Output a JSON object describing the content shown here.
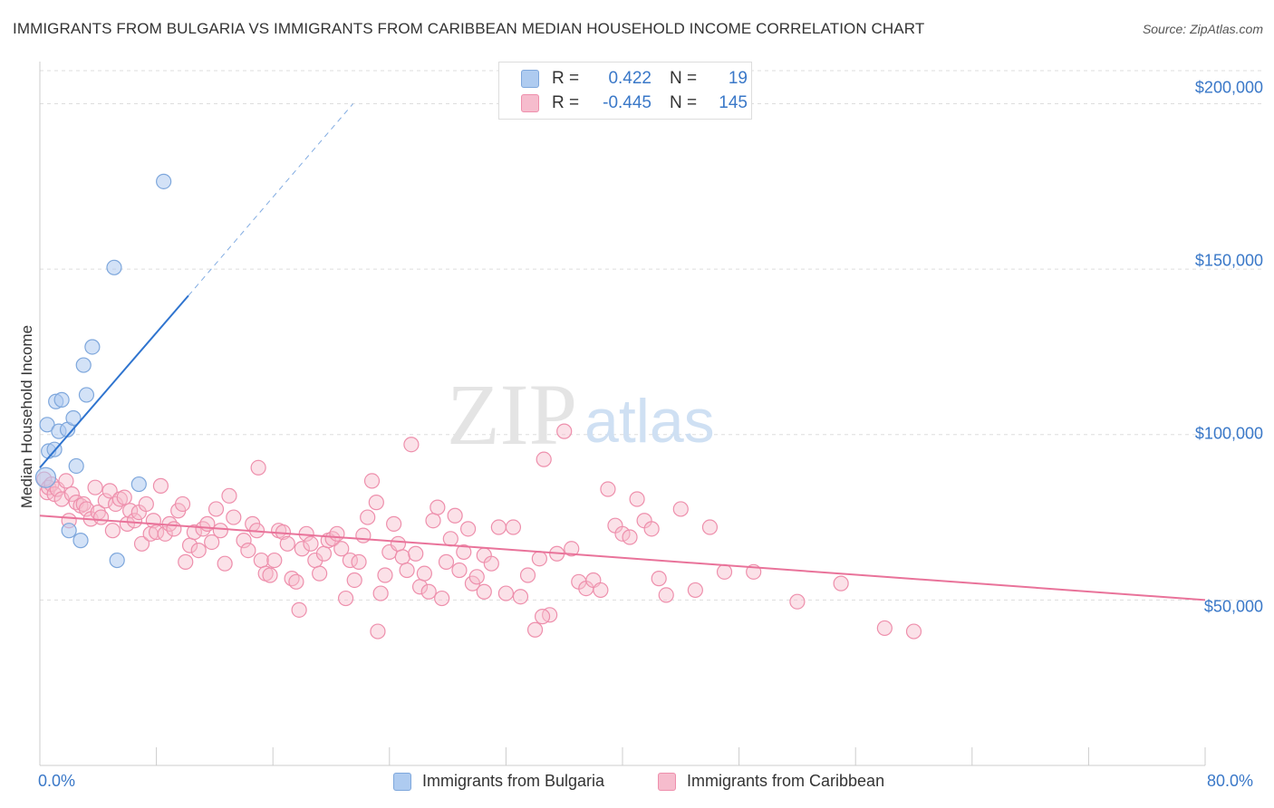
{
  "title": "IMMIGRANTS FROM BULGARIA VS IMMIGRANTS FROM CARIBBEAN MEDIAN HOUSEHOLD INCOME CORRELATION CHART",
  "source": "Source: ZipAtlas.com",
  "watermark": {
    "zip": "ZIP",
    "atlas": "atlas"
  },
  "legend": {
    "bulgaria": {
      "r_label": "R =",
      "r_value": "0.422",
      "n_label": "N =",
      "n_value": "19"
    },
    "caribbean": {
      "r_label": "R =",
      "r_value": "-0.445",
      "n_label": "N =",
      "n_value": "145"
    }
  },
  "colors": {
    "bulgaria_fill": "#aecbf0",
    "bulgaria_stroke": "#7ea7dc",
    "bulgaria_line": "#2f74cf",
    "caribbean_fill": "#f6bccd",
    "caribbean_stroke": "#ee8fac",
    "caribbean_line": "#e9739a",
    "accent_text": "#3a78c8",
    "grid": "#dddddd"
  },
  "chart_data": {
    "type": "scatter",
    "title": "IMMIGRANTS FROM BULGARIA VS IMMIGRANTS FROM CARIBBEAN MEDIAN HOUSEHOLD INCOME CORRELATION CHART",
    "xlabel": "",
    "ylabel": "Median Household Income",
    "xlim": [
      0,
      80
    ],
    "ylim": [
      0,
      210000
    ],
    "x_tick_labels": [
      "0.0%",
      "80.0%"
    ],
    "y_ticks": [
      {
        "value": 50000,
        "label": "$50,000"
      },
      {
        "value": 100000,
        "label": "$100,000"
      },
      {
        "value": 150000,
        "label": "$150,000"
      },
      {
        "value": 200000,
        "label": "$200,000"
      }
    ],
    "grid": true,
    "legend_position": "top-center",
    "series": [
      {
        "name": "Immigrants from Bulgaria",
        "r": 0.422,
        "n": 19,
        "trend": {
          "x": [
            0,
            10.2
          ],
          "y": [
            90000,
            142000
          ],
          "dashed_to": {
            "x": 21.5,
            "y": 200000
          }
        },
        "points": [
          [
            0.4,
            87000
          ],
          [
            0.5,
            103000
          ],
          [
            0.6,
            95000
          ],
          [
            1.0,
            95500
          ],
          [
            1.1,
            110000
          ],
          [
            1.3,
            101000
          ],
          [
            1.5,
            110500
          ],
          [
            1.9,
            101500
          ],
          [
            2.3,
            105000
          ],
          [
            2.5,
            90500
          ],
          [
            3.0,
            121000
          ],
          [
            3.2,
            112000
          ],
          [
            3.6,
            126500
          ],
          [
            5.1,
            150500
          ],
          [
            5.3,
            62000
          ],
          [
            6.8,
            85000
          ],
          [
            8.5,
            176500
          ],
          [
            2.0,
            71000
          ],
          [
            2.8,
            68000
          ]
        ]
      },
      {
        "name": "Immigrants from Caribbean",
        "r": -0.445,
        "n": 145,
        "trend": {
          "x": [
            0,
            80
          ],
          "y": [
            75500,
            50000
          ]
        },
        "points": [
          [
            0.3,
            86500
          ],
          [
            0.5,
            82500
          ],
          [
            0.6,
            84000
          ],
          [
            0.8,
            85000
          ],
          [
            1.0,
            82000
          ],
          [
            1.2,
            83500
          ],
          [
            1.5,
            80500
          ],
          [
            1.8,
            86000
          ],
          [
            2.0,
            74000
          ],
          [
            2.2,
            82000
          ],
          [
            2.5,
            79500
          ],
          [
            2.8,
            78500
          ],
          [
            3.0,
            79000
          ],
          [
            3.2,
            77500
          ],
          [
            3.5,
            74500
          ],
          [
            3.8,
            84000
          ],
          [
            4.0,
            76500
          ],
          [
            4.2,
            75000
          ],
          [
            4.5,
            80000
          ],
          [
            4.8,
            83000
          ],
          [
            5.0,
            71000
          ],
          [
            5.2,
            79000
          ],
          [
            5.5,
            80500
          ],
          [
            5.8,
            81000
          ],
          [
            6.0,
            73000
          ],
          [
            6.2,
            77000
          ],
          [
            6.5,
            74000
          ],
          [
            6.8,
            76500
          ],
          [
            7.0,
            67000
          ],
          [
            7.3,
            79000
          ],
          [
            7.6,
            70000
          ],
          [
            7.8,
            74000
          ],
          [
            8.0,
            70500
          ],
          [
            8.3,
            84500
          ],
          [
            8.6,
            70000
          ],
          [
            8.9,
            73000
          ],
          [
            9.2,
            71500
          ],
          [
            9.5,
            77000
          ],
          [
            9.8,
            79000
          ],
          [
            10.0,
            61500
          ],
          [
            10.3,
            66500
          ],
          [
            10.6,
            70500
          ],
          [
            10.9,
            65000
          ],
          [
            11.2,
            71500
          ],
          [
            11.5,
            73000
          ],
          [
            11.8,
            67500
          ],
          [
            12.1,
            77500
          ],
          [
            12.4,
            71000
          ],
          [
            12.7,
            61000
          ],
          [
            13.0,
            81500
          ],
          [
            13.3,
            75000
          ],
          [
            14.0,
            68000
          ],
          [
            14.3,
            65000
          ],
          [
            14.6,
            73000
          ],
          [
            14.9,
            71000
          ],
          [
            15.2,
            62000
          ],
          [
            15.5,
            58000
          ],
          [
            15.8,
            57500
          ],
          [
            16.1,
            62000
          ],
          [
            16.4,
            71000
          ],
          [
            16.7,
            70500
          ],
          [
            17.0,
            67000
          ],
          [
            17.3,
            56500
          ],
          [
            17.6,
            55500
          ],
          [
            18.0,
            65500
          ],
          [
            18.3,
            70000
          ],
          [
            18.6,
            67000
          ],
          [
            18.9,
            62000
          ],
          [
            19.2,
            58000
          ],
          [
            19.5,
            64000
          ],
          [
            19.8,
            68000
          ],
          [
            20.1,
            68500
          ],
          [
            20.4,
            70000
          ],
          [
            20.7,
            65500
          ],
          [
            21.0,
            50500
          ],
          [
            21.3,
            62000
          ],
          [
            21.6,
            56000
          ],
          [
            21.9,
            61500
          ],
          [
            22.2,
            69500
          ],
          [
            22.5,
            75000
          ],
          [
            22.8,
            86000
          ],
          [
            23.1,
            79500
          ],
          [
            23.4,
            52000
          ],
          [
            23.7,
            57500
          ],
          [
            24.0,
            64500
          ],
          [
            24.3,
            73000
          ],
          [
            24.6,
            67000
          ],
          [
            24.9,
            63000
          ],
          [
            25.2,
            59000
          ],
          [
            25.5,
            97000
          ],
          [
            25.8,
            64000
          ],
          [
            26.1,
            54000
          ],
          [
            26.4,
            58000
          ],
          [
            26.7,
            52500
          ],
          [
            27.0,
            74000
          ],
          [
            27.3,
            78000
          ],
          [
            27.6,
            50500
          ],
          [
            27.9,
            61500
          ],
          [
            28.2,
            68500
          ],
          [
            28.5,
            75500
          ],
          [
            28.8,
            59000
          ],
          [
            29.1,
            64500
          ],
          [
            29.4,
            71500
          ],
          [
            29.7,
            55000
          ],
          [
            30.0,
            57000
          ],
          [
            30.5,
            63500
          ],
          [
            31.0,
            61000
          ],
          [
            31.5,
            72000
          ],
          [
            32.0,
            52000
          ],
          [
            32.5,
            72000
          ],
          [
            33.0,
            51000
          ],
          [
            33.5,
            57500
          ],
          [
            34.0,
            41000
          ],
          [
            34.3,
            62500
          ],
          [
            34.6,
            92500
          ],
          [
            35.0,
            45500
          ],
          [
            35.5,
            64000
          ],
          [
            36.0,
            101000
          ],
          [
            36.5,
            65500
          ],
          [
            37.0,
            55500
          ],
          [
            37.5,
            53500
          ],
          [
            38.0,
            56000
          ],
          [
            38.5,
            53000
          ],
          [
            39.0,
            83500
          ],
          [
            39.5,
            72500
          ],
          [
            40.0,
            70000
          ],
          [
            40.5,
            69000
          ],
          [
            41.0,
            80500
          ],
          [
            41.5,
            74000
          ],
          [
            42.0,
            71500
          ],
          [
            43.0,
            51500
          ],
          [
            44.0,
            77500
          ],
          [
            45.0,
            53000
          ],
          [
            46.0,
            72000
          ],
          [
            47.0,
            58500
          ],
          [
            49.0,
            58500
          ],
          [
            52.0,
            49500
          ],
          [
            55.0,
            55000
          ],
          [
            58.0,
            41500
          ],
          [
            60.0,
            40500
          ],
          [
            15.0,
            90000
          ],
          [
            17.8,
            47000
          ],
          [
            23.2,
            40500
          ],
          [
            30.5,
            52500
          ],
          [
            34.5,
            45000
          ],
          [
            42.5,
            56500
          ]
        ]
      }
    ],
    "legend_entries": [
      "Immigrants from Bulgaria",
      "Immigrants from Caribbean"
    ]
  }
}
